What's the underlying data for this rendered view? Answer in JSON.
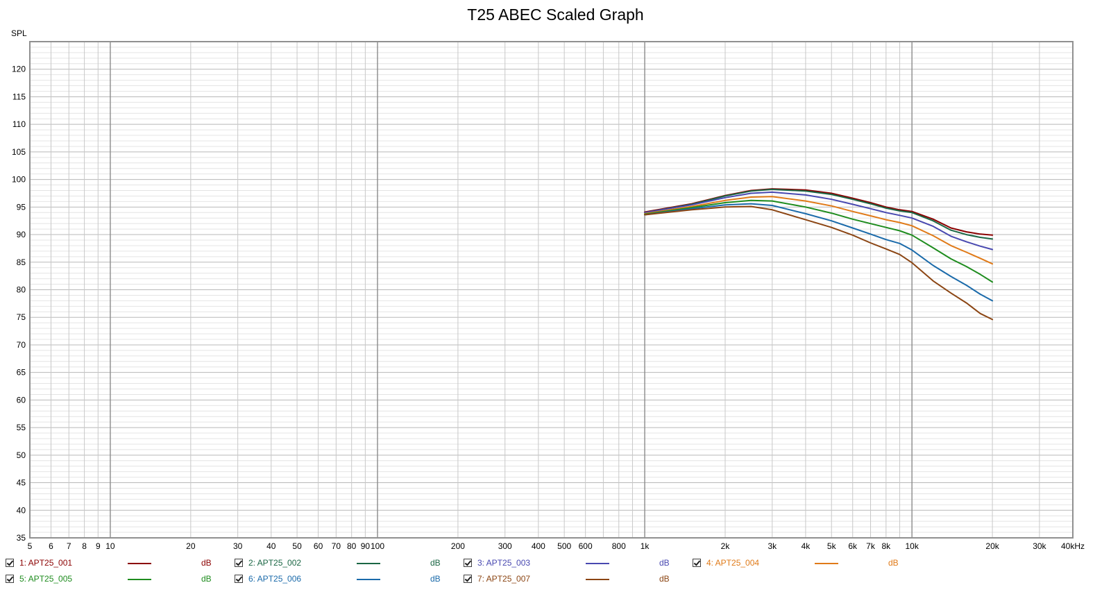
{
  "chart_data": {
    "type": "line",
    "title": "T25 ABEC Scaled Graph",
    "ylabel": "SPL",
    "xlabel": "",
    "x_scale": "log",
    "xlim": [
      5,
      40000
    ],
    "ylim": [
      35,
      125
    ],
    "grid": true,
    "y_ticks": [
      35,
      40,
      45,
      50,
      55,
      60,
      65,
      70,
      75,
      80,
      85,
      90,
      95,
      100,
      105,
      110,
      115,
      120
    ],
    "x_ticks": [
      {
        "v": 5,
        "label": "5"
      },
      {
        "v": 6,
        "label": "6"
      },
      {
        "v": 7,
        "label": "7"
      },
      {
        "v": 8,
        "label": "8"
      },
      {
        "v": 9,
        "label": "9"
      },
      {
        "v": 10,
        "label": "10"
      },
      {
        "v": 20,
        "label": "20"
      },
      {
        "v": 30,
        "label": "30"
      },
      {
        "v": 40,
        "label": "40"
      },
      {
        "v": 50,
        "label": "50"
      },
      {
        "v": 60,
        "label": "60"
      },
      {
        "v": 70,
        "label": "70"
      },
      {
        "v": 80,
        "label": "80"
      },
      {
        "v": 90,
        "label": "90"
      },
      {
        "v": 100,
        "label": "100"
      },
      {
        "v": 200,
        "label": "200"
      },
      {
        "v": 300,
        "label": "300"
      },
      {
        "v": 400,
        "label": "400"
      },
      {
        "v": 500,
        "label": "500"
      },
      {
        "v": 600,
        "label": "600"
      },
      {
        "v": 800,
        "label": "800"
      },
      {
        "v": 1000,
        "label": "1k"
      },
      {
        "v": 2000,
        "label": "2k"
      },
      {
        "v": 3000,
        "label": "3k"
      },
      {
        "v": 4000,
        "label": "4k"
      },
      {
        "v": 5000,
        "label": "5k"
      },
      {
        "v": 6000,
        "label": "6k"
      },
      {
        "v": 7000,
        "label": "7k"
      },
      {
        "v": 8000,
        "label": "8k"
      },
      {
        "v": 10000,
        "label": "10k"
      },
      {
        "v": 20000,
        "label": "20k"
      },
      {
        "v": 30000,
        "label": "30k"
      },
      {
        "v": 40000,
        "label": "40kHz"
      }
    ],
    "x": [
      1000,
      1500,
      2000,
      2500,
      3000,
      4000,
      5000,
      6000,
      7000,
      8000,
      9000,
      10000,
      12000,
      14000,
      16000,
      18000,
      20000
    ],
    "series": [
      {
        "name": "1: APT25_001",
        "color": "#8b0000",
        "values": [
          94.1,
          95.6,
          97.1,
          98.0,
          98.3,
          98.1,
          97.5,
          96.6,
          95.8,
          95.0,
          94.5,
          94.2,
          92.8,
          91.2,
          90.5,
          90.1,
          89.9
        ]
      },
      {
        "name": "2: APT25_002",
        "color": "#1a6644",
        "values": [
          94.0,
          95.5,
          97.0,
          97.9,
          98.2,
          97.9,
          97.3,
          96.4,
          95.6,
          94.8,
          94.3,
          94.0,
          92.5,
          90.8,
          90.0,
          89.5,
          89.2
        ]
      },
      {
        "name": "3: APT25_003",
        "color": "#4848b0",
        "values": [
          94.0,
          95.4,
          96.7,
          97.5,
          97.7,
          97.2,
          96.4,
          95.5,
          94.7,
          94.0,
          93.5,
          93.0,
          91.5,
          89.7,
          88.7,
          87.9,
          87.3
        ]
      },
      {
        "name": "4: APT25_004",
        "color": "#e07a18",
        "values": [
          93.8,
          95.1,
          96.2,
          96.8,
          96.9,
          96.1,
          95.2,
          94.2,
          93.4,
          92.7,
          92.2,
          91.6,
          89.8,
          88.0,
          86.8,
          85.7,
          84.7
        ]
      },
      {
        "name": "5: APT25_005",
        "color": "#1e8c1e",
        "values": [
          93.7,
          94.9,
          95.8,
          96.2,
          96.1,
          95.0,
          93.9,
          92.8,
          92.0,
          91.3,
          90.7,
          89.9,
          87.6,
          85.6,
          84.2,
          82.8,
          81.4
        ]
      },
      {
        "name": "6: APT25_006",
        "color": "#1a6aaa",
        "values": [
          93.6,
          94.7,
          95.4,
          95.6,
          95.3,
          93.8,
          92.5,
          91.2,
          90.1,
          89.1,
          88.4,
          87.2,
          84.4,
          82.4,
          80.8,
          79.2,
          78.0
        ]
      },
      {
        "name": "7: APT25_007",
        "color": "#8b4513",
        "values": [
          93.6,
          94.5,
          95.0,
          95.1,
          94.5,
          92.7,
          91.3,
          89.9,
          88.5,
          87.4,
          86.4,
          84.9,
          81.6,
          79.4,
          77.6,
          75.7,
          74.6
        ]
      }
    ]
  },
  "legend": {
    "unit_label": "dB",
    "items": [
      {
        "label": "1: APT25_001",
        "color": "#8b0000"
      },
      {
        "label": "2: APT25_002",
        "color": "#1a6644"
      },
      {
        "label": "3: APT25_003",
        "color": "#4848b0"
      },
      {
        "label": "4: APT25_004",
        "color": "#e07a18"
      },
      {
        "label": "5: APT25_005",
        "color": "#1e8c1e"
      },
      {
        "label": "6: APT25_006",
        "color": "#1a6aaa"
      },
      {
        "label": "7: APT25_007",
        "color": "#8b4513"
      }
    ]
  }
}
